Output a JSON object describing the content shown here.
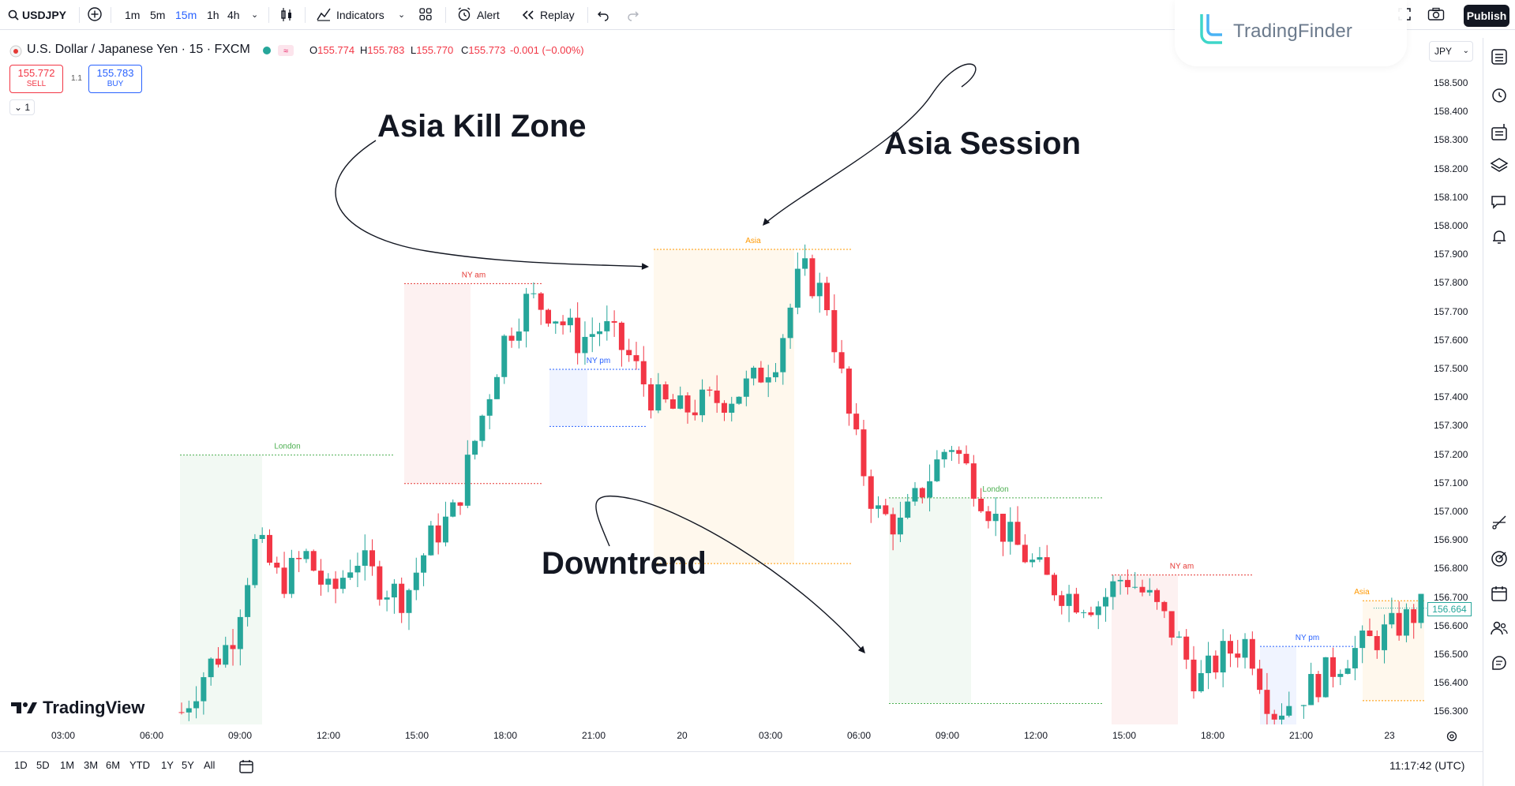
{
  "toolbar": {
    "symbol": "USDJPY",
    "intervals": [
      "1m",
      "5m",
      "15m",
      "1h",
      "4h"
    ],
    "active_interval": "15m",
    "indicators_label": "Indicators",
    "alert_label": "Alert",
    "replay_label": "Replay",
    "publish_label": "Publish"
  },
  "watermark": {
    "brand": "TradingFinder"
  },
  "legend": {
    "title": "U.S. Dollar / Japanese Yen · 15 · FXCM",
    "open": "155.774",
    "high": "155.783",
    "low": "155.770",
    "close": "155.773",
    "change": "-0.001 (−0.00%)",
    "sell_price": "155.772",
    "sell_label": "SELL",
    "buy_price": "155.783",
    "buy_label": "BUY",
    "spread": "1.1",
    "collapse_label": "1"
  },
  "price_scale": {
    "currency": "JPY",
    "ticks": [
      "158.500",
      "158.400",
      "158.300",
      "158.200",
      "158.100",
      "158.000",
      "157.900",
      "157.800",
      "157.700",
      "157.600",
      "157.500",
      "157.400",
      "157.300",
      "157.200",
      "157.100",
      "157.000",
      "156.900",
      "156.800",
      "156.700",
      "156.600",
      "156.500",
      "156.400",
      "156.300"
    ],
    "current_price": "156.664"
  },
  "time_axis": {
    "ticks": [
      "03:00",
      "06:00",
      "09:00",
      "12:00",
      "15:00",
      "18:00",
      "21:00",
      "20",
      "03:00",
      "06:00",
      "09:00",
      "12:00",
      "15:00",
      "18:00",
      "21:00",
      "23"
    ]
  },
  "bottom": {
    "ranges": [
      "1D",
      "5D",
      "1M",
      "3M",
      "6M",
      "YTD",
      "1Y",
      "5Y",
      "All"
    ],
    "clock": "11:17:42 (UTC)"
  },
  "branding": {
    "tradingview": "TradingView"
  },
  "annotations": {
    "asia_kill_zone": "Asia Kill Zone",
    "asia_session": "Asia Session",
    "downtrend": "Downtrend"
  },
  "colors": {
    "up": "#26a69a",
    "down": "#f23645",
    "london": "#4caf50",
    "ny_am": "#e53935",
    "ny_pm": "#2962ff",
    "asia": "#ff9800"
  },
  "chart_data": {
    "type": "candlestick",
    "symbol": "USDJPY",
    "timeframe": "15",
    "ylim": [
      156.22,
      158.62
    ],
    "sessions": [
      {
        "label": "London",
        "high": 157.2,
        "low": 156.25
      },
      {
        "label": "NY am",
        "high": 157.8,
        "low": 157.1
      },
      {
        "label": "NY pm",
        "high": 157.5,
        "low": 157.3
      },
      {
        "label": "Asia",
        "high": 157.92,
        "low": 156.82
      },
      {
        "label": "London",
        "high": 157.05,
        "low": 156.33
      },
      {
        "label": "NY am",
        "high": 156.78,
        "low": 156.25
      },
      {
        "label": "NY pm",
        "high": 156.53,
        "low": 156.25
      },
      {
        "label": "Asia",
        "high": 156.69,
        "low": 156.34
      }
    ],
    "price_path": [
      156.3,
      156.45,
      156.55,
      156.9,
      156.75,
      156.85,
      156.7,
      156.85,
      156.75,
      156.7,
      156.9,
      157.0,
      157.3,
      157.6,
      157.75,
      157.7,
      157.6,
      157.65,
      157.55,
      157.4,
      157.35,
      157.38,
      157.4,
      157.45,
      157.55,
      157.85,
      157.75,
      157.3,
      157.0,
      156.95,
      157.1,
      157.25,
      157.1,
      156.95,
      156.85,
      156.75,
      156.7,
      156.68,
      156.78,
      156.7,
      156.58,
      156.4,
      156.5,
      156.55,
      156.3,
      156.35,
      156.42,
      156.5,
      156.55,
      156.6,
      156.66
    ]
  }
}
